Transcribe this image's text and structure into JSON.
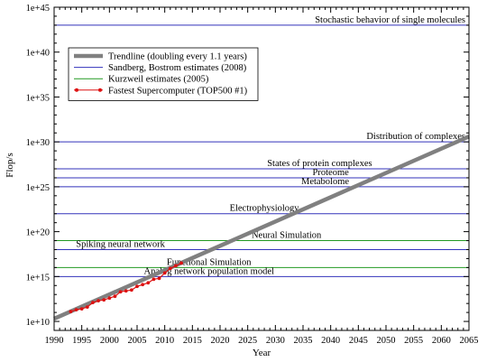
{
  "colors": {
    "trend": "#808080",
    "sandberg": "#3333bb",
    "kurzweil": "#229922",
    "top500": "#dd1111",
    "axis": "#000000"
  },
  "chart_data": {
    "type": "line",
    "xlabel": "Year",
    "ylabel": "Flop/s",
    "xlim": [
      1990,
      2065
    ],
    "ylim_log10": [
      9,
      45
    ],
    "y_scale": "log",
    "x_ticks": [
      1990,
      1995,
      2000,
      2005,
      2010,
      2015,
      2020,
      2025,
      2030,
      2035,
      2040,
      2045,
      2050,
      2055,
      2060,
      2065
    ],
    "y_ticks": [
      {
        "exp": 10,
        "label": "1e+10"
      },
      {
        "exp": 15,
        "label": "1e+15"
      },
      {
        "exp": 20,
        "label": "1e+20"
      },
      {
        "exp": 25,
        "label": "1e+25"
      },
      {
        "exp": 30,
        "label": "1e+30"
      },
      {
        "exp": 35,
        "label": "1e+35"
      },
      {
        "exp": 40,
        "label": "1e+40"
      },
      {
        "exp": 45,
        "label": "1e+45"
      }
    ],
    "legend_position": "top-left",
    "legend": [
      {
        "key": "trend",
        "label": "Trendline (doubling every 1.1 years)",
        "style": "trend"
      },
      {
        "key": "sandberg",
        "label": "Sandberg, Bostrom estimates (2008)",
        "style": "line"
      },
      {
        "key": "kurzweil",
        "label": "Kurzweil estimates (2005)",
        "style": "line"
      },
      {
        "key": "top500",
        "label": "Fastest Supercomputer (TOP500 #1)",
        "style": "marker"
      }
    ],
    "trendline": {
      "x": [
        1990,
        2065
      ],
      "log10_y": [
        10.3,
        30.6
      ]
    },
    "reference_lines": [
      {
        "label": "Stochastic behavior of single molecules",
        "log10_y": 43,
        "series": "sandberg",
        "label_x": 2065,
        "label_anchor": "end"
      },
      {
        "label": "Distribution of complexes",
        "log10_y": 30,
        "series": "sandberg",
        "label_x": 2065,
        "label_anchor": "end"
      },
      {
        "label": "States of protein complexes",
        "log10_y": 27,
        "series": "sandberg",
        "label_x": 2038,
        "label_anchor": "middle"
      },
      {
        "label": "Proteome",
        "log10_y": 26,
        "series": "sandberg",
        "label_x": 2040,
        "label_anchor": "middle"
      },
      {
        "label": "Metabolome",
        "log10_y": 25,
        "series": "sandberg",
        "label_x": 2039,
        "label_anchor": "middle"
      },
      {
        "label": "Electrophysiology",
        "log10_y": 22,
        "series": "sandberg",
        "label_x": 2028,
        "label_anchor": "middle"
      },
      {
        "label": "Neural Simulation",
        "log10_y": 19,
        "series": "kurzweil",
        "label_x": 2032,
        "label_anchor": "middle"
      },
      {
        "label": "Spiking neural network",
        "log10_y": 18,
        "series": "sandberg",
        "label_x": 2002,
        "label_anchor": "middle"
      },
      {
        "label": "Functional Simulation",
        "log10_y": 16,
        "series": "kurzweil",
        "label_x": 2018,
        "label_anchor": "middle"
      },
      {
        "label": "Analog network population model",
        "log10_y": 15,
        "series": "sandberg",
        "label_x": 2018,
        "label_anchor": "middle"
      }
    ],
    "series": [
      {
        "name": "Fastest Supercomputer (TOP500 #1)",
        "x": [
          1993,
          1994,
          1995,
          1996,
          1997,
          1998,
          1999,
          2000,
          2001,
          2002,
          2003,
          2004,
          2005,
          2006,
          2007,
          2008,
          2009,
          2010,
          2011,
          2012,
          2013
        ],
        "log10_y": [
          11.1,
          11.3,
          11.4,
          11.6,
          12.1,
          12.3,
          12.4,
          12.6,
          12.8,
          13.3,
          13.4,
          13.5,
          13.9,
          14.1,
          14.3,
          14.7,
          14.8,
          15.4,
          15.9,
          16.2,
          16.5
        ]
      }
    ]
  }
}
